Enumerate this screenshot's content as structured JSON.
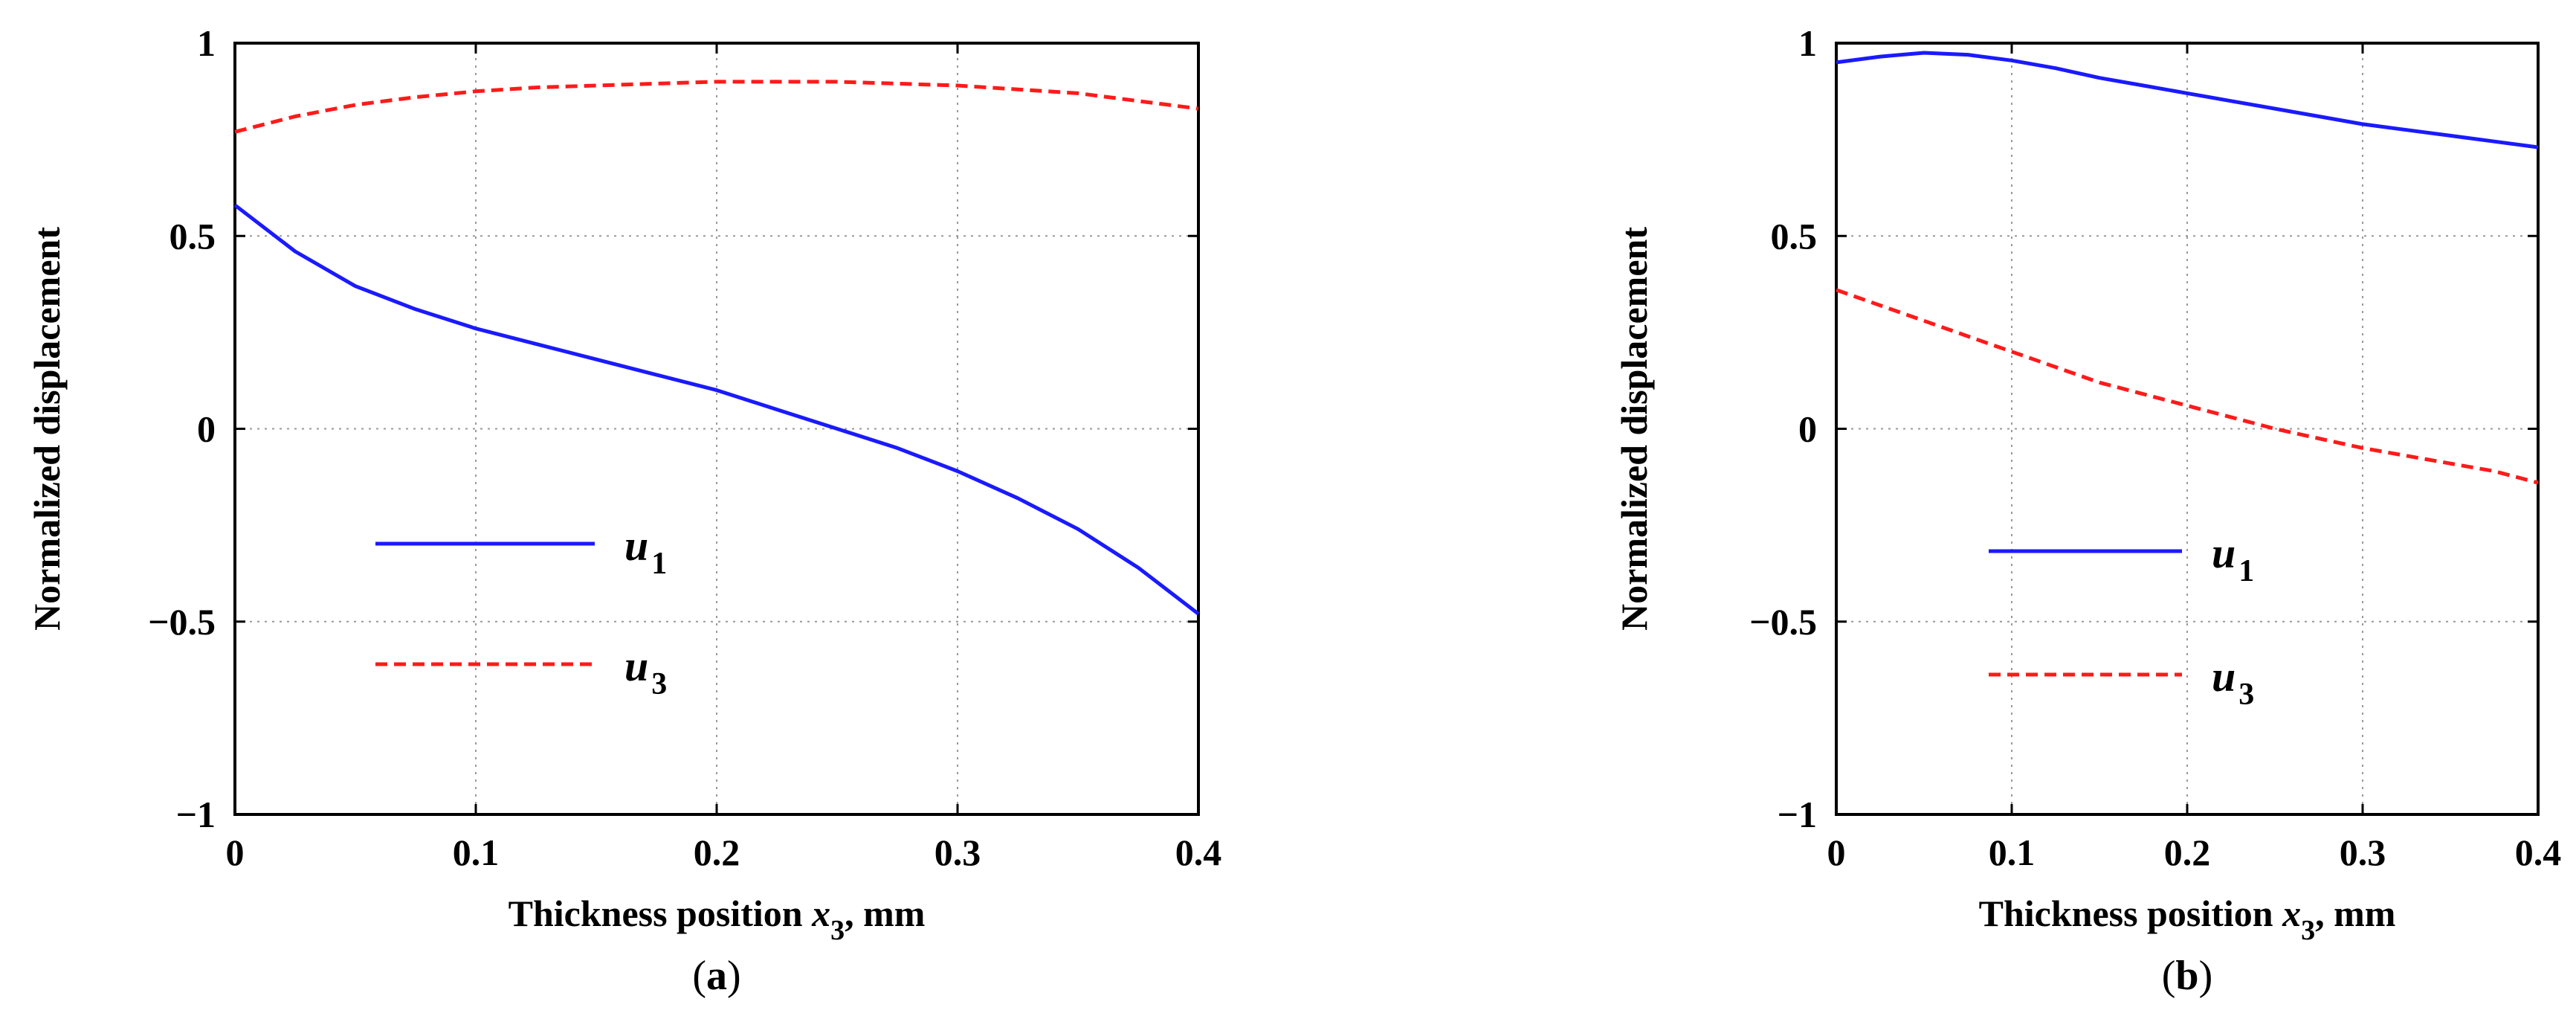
{
  "chart_data": [
    {
      "type": "line",
      "panel_label": "a",
      "caption_open": "(",
      "caption_close": ")",
      "xlabel_main": "Thickness position ",
      "xlabel_var": "x",
      "xlabel_sub": "3",
      "xlabel_unit": ", mm",
      "ylabel": "Normalized displacement",
      "xlim": [
        0,
        0.4
      ],
      "ylim": [
        -1,
        1
      ],
      "x_ticks": [
        0,
        0.1,
        0.2,
        0.3,
        0.4
      ],
      "x_tick_labels": [
        "0",
        "0.1",
        "0.2",
        "0.3",
        "0.4"
      ],
      "y_ticks": [
        -1,
        -0.5,
        0,
        0.5,
        1
      ],
      "y_tick_labels": [
        "−1",
        "−0.5",
        "0",
        "0.5",
        "1"
      ],
      "grid": true,
      "legend_position": "middle-left",
      "series": [
        {
          "name": "u",
          "subscript": "1",
          "color": "#1a1aff",
          "style": "solid",
          "x": [
            0,
            0.025,
            0.05,
            0.075,
            0.1,
            0.125,
            0.15,
            0.175,
            0.2,
            0.225,
            0.25,
            0.275,
            0.3,
            0.325,
            0.35,
            0.375,
            0.4
          ],
          "y": [
            0.58,
            0.46,
            0.37,
            0.31,
            0.26,
            0.22,
            0.18,
            0.14,
            0.1,
            0.05,
            0.0,
            -0.05,
            -0.11,
            -0.18,
            -0.26,
            -0.36,
            -0.48
          ]
        },
        {
          "name": "u",
          "subscript": "3",
          "color": "#ff1a1a",
          "style": "dashed",
          "x": [
            0,
            0.025,
            0.05,
            0.075,
            0.1,
            0.125,
            0.15,
            0.175,
            0.2,
            0.225,
            0.25,
            0.275,
            0.3,
            0.325,
            0.35,
            0.375,
            0.4
          ],
          "y": [
            0.77,
            0.81,
            0.84,
            0.86,
            0.875,
            0.885,
            0.89,
            0.895,
            0.9,
            0.9,
            0.9,
            0.895,
            0.89,
            0.88,
            0.87,
            0.85,
            0.83
          ]
        }
      ]
    },
    {
      "type": "line",
      "panel_label": "b",
      "caption_open": "(",
      "caption_close": ")",
      "xlabel_main": "Thickness position ",
      "xlabel_var": "x",
      "xlabel_sub": "3",
      "xlabel_unit": ", mm",
      "ylabel": "Normalized displacement",
      "xlim": [
        0,
        0.4
      ],
      "ylim": [
        -1,
        1
      ],
      "x_ticks": [
        0,
        0.1,
        0.2,
        0.3,
        0.4
      ],
      "x_tick_labels": [
        "0",
        "0.1",
        "0.2",
        "0.3",
        "0.4"
      ],
      "y_ticks": [
        -1,
        -0.5,
        0,
        0.5,
        1
      ],
      "y_tick_labels": [
        "−1",
        "−0.5",
        "0",
        "0.5",
        "1"
      ],
      "grid": true,
      "legend_position": "middle-left",
      "series": [
        {
          "name": "u",
          "subscript": "1",
          "color": "#1a1aff",
          "style": "solid",
          "x": [
            0,
            0.025,
            0.05,
            0.075,
            0.1,
            0.125,
            0.15,
            0.175,
            0.2,
            0.225,
            0.25,
            0.275,
            0.3,
            0.325,
            0.35,
            0.375,
            0.4
          ],
          "y": [
            0.95,
            0.965,
            0.975,
            0.97,
            0.955,
            0.935,
            0.91,
            0.89,
            0.87,
            0.85,
            0.83,
            0.81,
            0.79,
            0.775,
            0.76,
            0.745,
            0.73
          ]
        },
        {
          "name": "u",
          "subscript": "3",
          "color": "#ff1a1a",
          "style": "dashed",
          "x": [
            0,
            0.025,
            0.05,
            0.075,
            0.1,
            0.125,
            0.15,
            0.175,
            0.2,
            0.225,
            0.25,
            0.275,
            0.3,
            0.325,
            0.35,
            0.375,
            0.4
          ],
          "y": [
            0.36,
            0.32,
            0.28,
            0.24,
            0.2,
            0.16,
            0.12,
            0.09,
            0.06,
            0.03,
            0.0,
            -0.025,
            -0.05,
            -0.07,
            -0.09,
            -0.11,
            -0.14
          ]
        }
      ]
    }
  ]
}
